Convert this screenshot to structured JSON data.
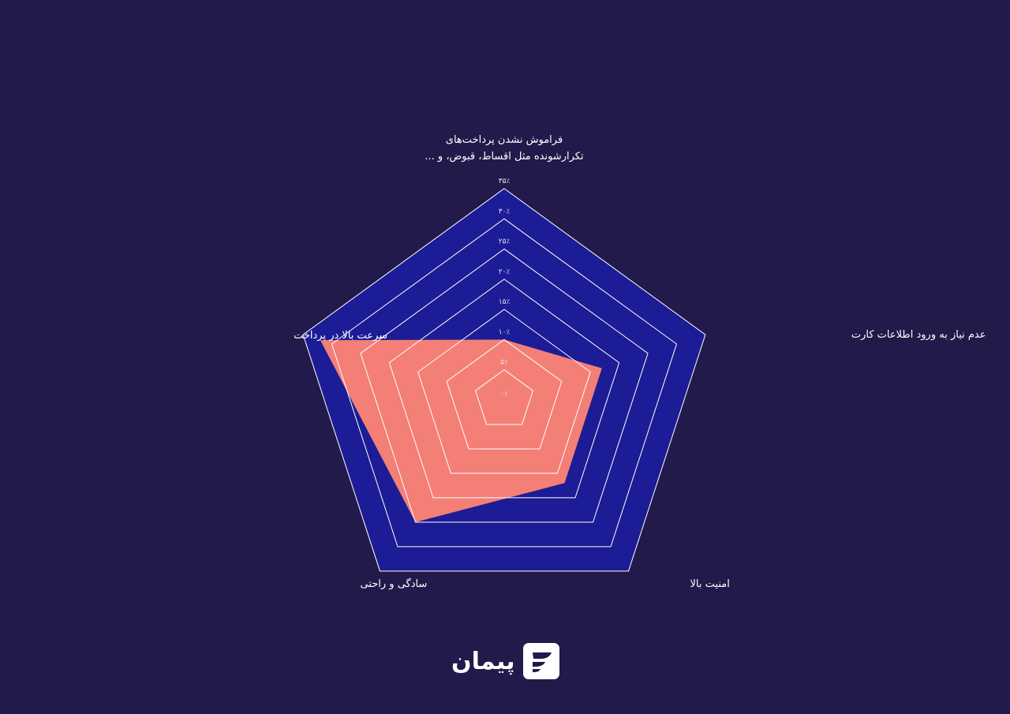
{
  "chart_data": {
    "type": "radar",
    "axes": [
      "فراموش نشدن پرداخت‌های|تکرارشونده مثل اقساط، قبوض، و ...",
      "عدم نیاز به ورود اطلاعات کارت",
      "امنیت بالا",
      "سادگی و راحتی",
      "سرعت بالا در پرداخت"
    ],
    "values": [
      10,
      17,
      17,
      25,
      32
    ],
    "rmax": 35,
    "ticks": [
      0,
      5,
      10,
      15,
      20,
      25,
      30,
      35
    ],
    "tick_labels": [
      "۰٪",
      "۵٪",
      "۱۰٪",
      "۱۵٪",
      "۲۰٪",
      "۲۵٪",
      "۳۰٪",
      "۳۵٪"
    ],
    "grid": true,
    "colors": {
      "background": "#211a4a",
      "area": "#1c1c96",
      "grid": "#ffffff",
      "series": "#f47f77"
    }
  },
  "brand": {
    "name": "پیمان"
  }
}
